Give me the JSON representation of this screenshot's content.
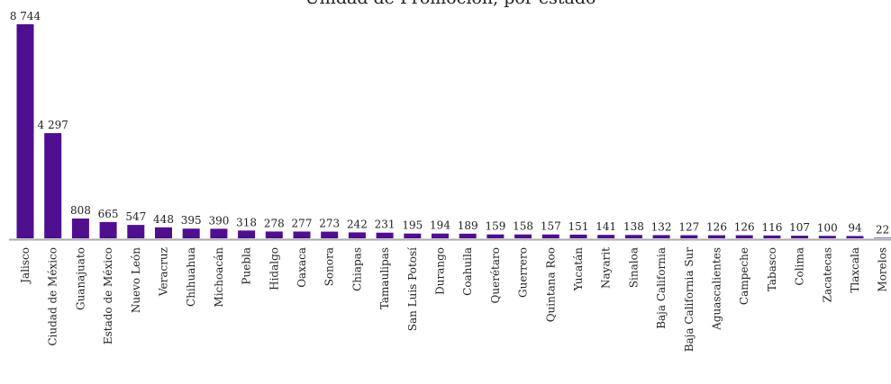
{
  "chart_data": {
    "type": "bar",
    "title": "Unidad de Promoción, por estado",
    "categories": [
      "Jalisco",
      "Ciudad de México",
      "Guanajuato",
      "Estado de México",
      "Nuevo León",
      "Veracruz",
      "Chihuahua",
      "Michoacán",
      "Puebla",
      "Hidalgo",
      "Oaxaca",
      "Sonora",
      "Chiapas",
      "Tamaulipas",
      "San Luis Potosí",
      "Durango",
      "Coahuila",
      "Querétaro",
      "Guerrero",
      "Quintana Roo",
      "Yucatán",
      "Nayarit",
      "Sinaloa",
      "Baja California",
      "Baja California Sur",
      "Aguascalientes",
      "Campeche",
      "Tabasco",
      "Colima",
      "Zacatecas",
      "Tlaxcala",
      "Morelos"
    ],
    "values": [
      8744,
      4297,
      808,
      665,
      547,
      448,
      395,
      390,
      318,
      278,
      277,
      273,
      242,
      231,
      195,
      194,
      189,
      159,
      158,
      157,
      151,
      141,
      138,
      132,
      127,
      126,
      126,
      116,
      107,
      100,
      94,
      22
    ],
    "value_labels": [
      "8 744",
      "4 297",
      "808",
      "665",
      "547",
      "448",
      "395",
      "390",
      "318",
      "278",
      "277",
      "273",
      "242",
      "231",
      "195",
      "194",
      "189",
      "159",
      "158",
      "157",
      "151",
      "141",
      "138",
      "132",
      "127",
      "126",
      "126",
      "116",
      "107",
      "100",
      "94",
      "22"
    ],
    "color": "#4f0f8f"
  }
}
